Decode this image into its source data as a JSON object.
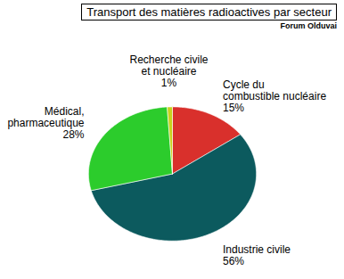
{
  "chart_data": {
    "type": "pie",
    "title": "Transport des matières radioactives par secteur",
    "caption": "Forum Olduvai",
    "categories": [
      "Cycle du\ncombustible nucléaire",
      "Industrie civile",
      "Médical,\npharmaceutique",
      "Recherche civile\net nucléaire"
    ],
    "values": [
      15,
      56,
      28,
      1
    ],
    "value_labels": [
      "15%",
      "56%",
      "28%",
      "1%"
    ],
    "colors": [
      "#d9302c",
      "#0c5a5e",
      "#2ccc2c",
      "#c8d21e"
    ],
    "data_labels": true
  }
}
